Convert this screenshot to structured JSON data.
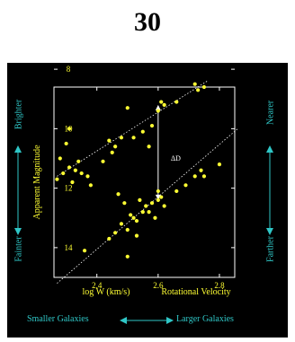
{
  "page": {
    "slide_number": "30"
  },
  "labels": {
    "brighter": "Brighter",
    "fainter": "Fainter",
    "nearer": "Nearer",
    "farther": "Farther",
    "bottom_left": "Smaller Galaxies",
    "bottom_right": "Larger Galaxies"
  },
  "colors": {
    "background": "#000000",
    "axes": "#ffffff",
    "points": "#ffff33",
    "accent": "#2fc6c6"
  },
  "chart_data": {
    "type": "scatter",
    "xlabel": "log W (km/s)",
    "xlabel2": "Rotational Velocity",
    "ylabel": "Apparent Magnitude",
    "xlim": [
      2.26,
      2.85
    ],
    "ylim": [
      15.0,
      8.6
    ],
    "y_inverted": true,
    "xticks": [
      "2.4",
      "2.6",
      "2.8"
    ],
    "xtick_values": [
      2.4,
      2.6,
      2.8
    ],
    "yticks": [
      "8",
      "10",
      "12",
      "14"
    ],
    "ytick_values": [
      8,
      10,
      12,
      14
    ],
    "annotation": "ΔD",
    "arrow": {
      "x": 2.6,
      "y_from": 9.2,
      "y_to": 12.4
    },
    "fit_lines": [
      {
        "x": [
          2.27,
          2.76
        ],
        "y": [
          11.6,
          8.4
        ]
      },
      {
        "x": [
          2.27,
          2.86
        ],
        "y": [
          15.2,
          10.0
        ]
      }
    ],
    "series": [
      {
        "x": [
          2.27,
          2.28,
          2.29,
          2.3,
          2.31,
          2.32,
          2.33,
          2.34,
          2.35,
          2.38,
          2.42,
          2.44,
          2.46,
          2.48,
          2.5,
          2.52,
          2.57,
          2.58,
          2.6,
          2.61,
          2.62,
          2.66,
          2.72,
          2.73,
          2.75,
          2.31,
          2.37,
          2.45,
          2.55
        ],
        "y": [
          11.7,
          11.0,
          11.5,
          10.5,
          11.3,
          11.8,
          11.4,
          11.1,
          11.5,
          11.9,
          11.1,
          10.4,
          10.6,
          10.3,
          9.3,
          10.3,
          10.6,
          9.9,
          9.4,
          9.1,
          9.2,
          9.1,
          8.5,
          8.7,
          8.6,
          10.0,
          11.6,
          10.8,
          10.1
        ]
      },
      {
        "x": [
          2.36,
          2.44,
          2.46,
          2.47,
          2.48,
          2.49,
          2.5,
          2.51,
          2.52,
          2.53,
          2.54,
          2.55,
          2.56,
          2.58,
          2.59,
          2.6,
          2.61,
          2.62,
          2.66,
          2.69,
          2.72,
          2.74,
          2.75,
          2.8,
          2.5,
          2.53,
          2.57,
          2.6
        ],
        "y": [
          14.1,
          13.7,
          13.5,
          12.2,
          13.2,
          12.5,
          13.4,
          12.9,
          13.0,
          13.6,
          12.4,
          12.8,
          12.6,
          12.5,
          13.0,
          12.1,
          12.3,
          12.6,
          12.1,
          11.9,
          11.6,
          11.4,
          11.6,
          11.2,
          14.3,
          13.1,
          12.8,
          12.4
        ]
      }
    ]
  }
}
